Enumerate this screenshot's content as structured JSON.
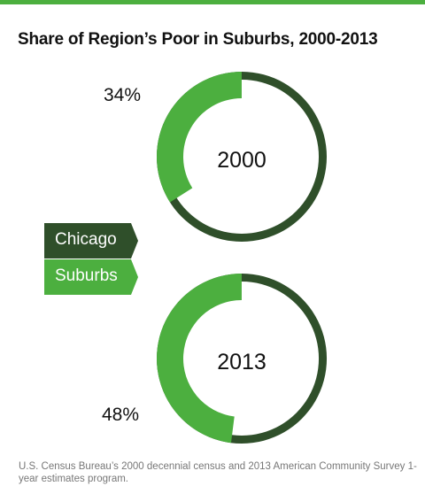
{
  "title": "Share of Region’s Poor in Suburbs, 2000-2013",
  "colors": {
    "chicago": "#2f4f2a",
    "suburbs": "#4caf3f",
    "accent_rule": "#4caf3f"
  },
  "chart_data": [
    {
      "type": "pie",
      "title": "2000",
      "categories": [
        "Suburbs",
        "Chicago"
      ],
      "values": [
        34,
        66
      ],
      "data_labels": [
        "34%"
      ]
    },
    {
      "type": "pie",
      "title": "2013",
      "categories": [
        "Suburbs",
        "Chicago"
      ],
      "values": [
        48,
        52
      ],
      "data_labels": [
        "48%"
      ]
    }
  ],
  "legend": [
    {
      "label": "Chicago"
    },
    {
      "label": "Suburbs"
    }
  ],
  "source": "U.S. Census Bureau’s 2000 decennial census and 2013 American Community Survey 1-year estimates program."
}
